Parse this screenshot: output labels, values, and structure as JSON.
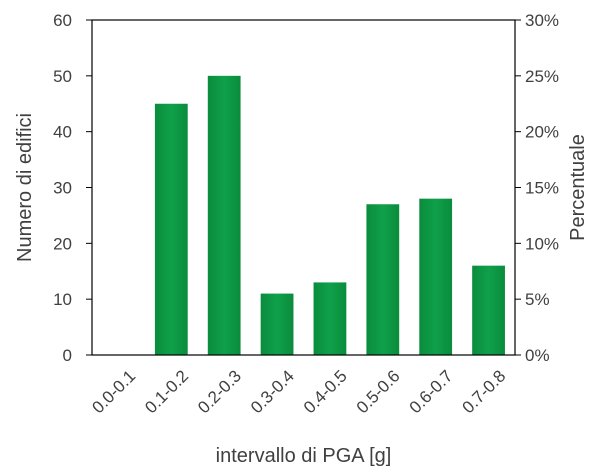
{
  "chart_data": {
    "type": "bar",
    "categories": [
      "0.0-0.1",
      "0.1-0.2",
      "0.2-0.3",
      "0.3-0.4",
      "0.4-0.5",
      "0.5-0.6",
      "0.6-0.7",
      "0.7-0.8"
    ],
    "values": [
      0,
      45,
      50,
      11,
      13,
      27,
      28,
      16
    ],
    "xlabel": "intervallo di PGA [g]",
    "ylabel": "Numero di edifici",
    "y2label": "Percentuale",
    "ylim": [
      0,
      60
    ],
    "yticks": [
      0,
      10,
      20,
      30,
      40,
      50,
      60
    ],
    "y2lim": [
      0,
      0.3
    ],
    "y2ticks": [
      "0%",
      "5%",
      "10%",
      "15%",
      "20%",
      "25%",
      "30%"
    ],
    "grid": false,
    "bar_color": "#0fa04a",
    "bar_color_dark": "#0a8c3c"
  }
}
